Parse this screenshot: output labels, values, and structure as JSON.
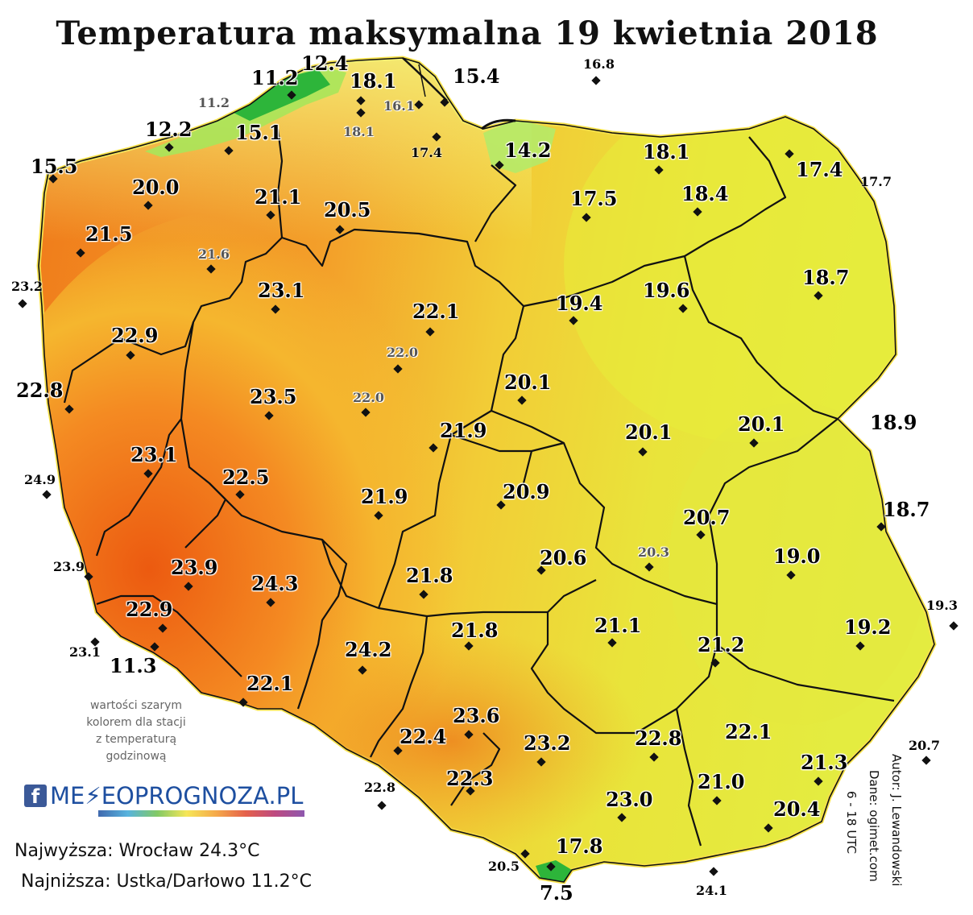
{
  "title": "Temperatura maksymalna 19 kwietnia 2018",
  "map_labels": [
    {
      "text": "12.4",
      "style": "big"
    },
    {
      "text": "11.2",
      "style": "big"
    },
    {
      "text": "11.2",
      "style": "gray"
    },
    {
      "text": "18.1",
      "style": "big"
    },
    {
      "text": "15.4",
      "style": "big"
    },
    {
      "text": "16.8",
      "style": "small"
    },
    {
      "text": "16.1",
      "style": "gray"
    },
    {
      "text": "12.2",
      "style": "big"
    },
    {
      "text": "15.1",
      "style": "big"
    },
    {
      "text": "18.1",
      "style": "gray"
    },
    {
      "text": "17.4",
      "style": "small"
    },
    {
      "text": "14.2",
      "style": "big"
    },
    {
      "text": "18.1",
      "style": "big"
    },
    {
      "text": "15.5",
      "style": "big"
    },
    {
      "text": "17.4",
      "style": "big"
    },
    {
      "text": "17.7",
      "style": "small"
    },
    {
      "text": "20.0",
      "style": "big"
    },
    {
      "text": "21.1",
      "style": "big"
    },
    {
      "text": "20.5",
      "style": "big"
    },
    {
      "text": "17.5",
      "style": "big"
    },
    {
      "text": "18.4",
      "style": "big"
    },
    {
      "text": "21.5",
      "style": "big"
    },
    {
      "text": "21.6",
      "style": "gray"
    },
    {
      "text": "23.2",
      "style": "small"
    },
    {
      "text": "23.1",
      "style": "big"
    },
    {
      "text": "18.7",
      "style": "big"
    },
    {
      "text": "22.1",
      "style": "big"
    },
    {
      "text": "19.4",
      "style": "big"
    },
    {
      "text": "19.6",
      "style": "big"
    },
    {
      "text": "22.9",
      "style": "big"
    },
    {
      "text": "22.0",
      "style": "gray"
    },
    {
      "text": "22.8",
      "style": "big"
    },
    {
      "text": "20.1",
      "style": "big"
    },
    {
      "text": "23.5",
      "style": "big"
    },
    {
      "text": "22.0",
      "style": "gray"
    },
    {
      "text": "21.9",
      "style": "big"
    },
    {
      "text": "20.1",
      "style": "big"
    },
    {
      "text": "20.1",
      "style": "big"
    },
    {
      "text": "18.9",
      "style": "big"
    },
    {
      "text": "23.1",
      "style": "big"
    },
    {
      "text": "24.9",
      "style": "small"
    },
    {
      "text": "22.5",
      "style": "big"
    },
    {
      "text": "21.9",
      "style": "big"
    },
    {
      "text": "20.9",
      "style": "big"
    },
    {
      "text": "20.7",
      "style": "big"
    },
    {
      "text": "18.7",
      "style": "big"
    },
    {
      "text": "20.3",
      "style": "gray"
    },
    {
      "text": "23.9",
      "style": "small"
    },
    {
      "text": "23.9",
      "style": "big"
    },
    {
      "text": "20.6",
      "style": "big"
    },
    {
      "text": "19.0",
      "style": "big"
    },
    {
      "text": "24.3",
      "style": "big"
    },
    {
      "text": "21.8",
      "style": "big"
    },
    {
      "text": "19.3",
      "style": "small"
    },
    {
      "text": "22.9",
      "style": "big"
    },
    {
      "text": "21.8",
      "style": "big"
    },
    {
      "text": "21.1",
      "style": "big"
    },
    {
      "text": "19.2",
      "style": "big"
    },
    {
      "text": "23.1",
      "style": "small"
    },
    {
      "text": "11.3",
      "style": "big"
    },
    {
      "text": "21.2",
      "style": "big"
    },
    {
      "text": "24.2",
      "style": "big"
    },
    {
      "text": "22.1",
      "style": "big"
    },
    {
      "text": "23.6",
      "style": "big"
    },
    {
      "text": "22.1",
      "style": "big"
    },
    {
      "text": "22.4",
      "style": "big"
    },
    {
      "text": "23.2",
      "style": "big"
    },
    {
      "text": "22.8",
      "style": "big"
    },
    {
      "text": "20.7",
      "style": "small"
    },
    {
      "text": "21.3",
      "style": "big"
    },
    {
      "text": "22.3",
      "style": "big"
    },
    {
      "text": "21.0",
      "style": "big"
    },
    {
      "text": "22.8",
      "style": "small"
    },
    {
      "text": "23.0",
      "style": "big"
    },
    {
      "text": "20.4",
      "style": "big"
    },
    {
      "text": "17.8",
      "style": "big"
    },
    {
      "text": "20.5",
      "style": "small"
    },
    {
      "text": "7.5",
      "style": "big"
    },
    {
      "text": "24.1",
      "style": "small"
    }
  ],
  "note_lines": [
    "wartości szarym",
    "kolorem dla stacji",
    "z temperaturą",
    "godzinową"
  ],
  "logo": {
    "fb": "f",
    "brand": "ME⚡EOPROGNOZA.PL"
  },
  "stats": {
    "max": "Najwyższa: Wrocław 24.3°C",
    "min": "Najniższa: Ustka/Darłowo 11.2°C"
  },
  "credits": {
    "author": "Autor: J. Lewandowski",
    "data": "Dane: ogimet.com",
    "hours": "6 - 18 UTC"
  },
  "colors": {
    "hot": "#f06a14",
    "warm": "#f39a2a",
    "mild": "#f5c232",
    "cool": "#eedf35",
    "cold": "#e8ef3c",
    "coast": "#a8e65a",
    "green": "#2db53a",
    "border": "#111111"
  }
}
